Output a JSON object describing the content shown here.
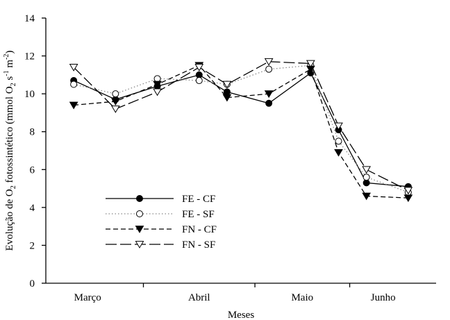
{
  "chart_data": {
    "type": "line",
    "xlabel": "Meses",
    "ylabel": {
      "parts": [
        {
          "t": "Evolução de O"
        },
        {
          "t": "2",
          "s": "sub"
        },
        {
          "t": " fotossintético (mmol O"
        },
        {
          "t": "2",
          "s": "sub"
        },
        {
          "t": " s"
        },
        {
          "t": "-1",
          "s": "sup"
        },
        {
          "t": " m"
        },
        {
          "t": "-2",
          "s": "sup"
        },
        {
          "t": ")"
        }
      ]
    },
    "ylim": [
      0,
      14
    ],
    "yticks": [
      0,
      2,
      4,
      6,
      8,
      10,
      12,
      14
    ],
    "xlim": [
      0,
      14
    ],
    "categories": [
      {
        "label": "Março",
        "x": 1.5
      },
      {
        "label": "Abril",
        "x": 5.5
      },
      {
        "label": "Maio",
        "x": 9.2
      },
      {
        "label": "Junho",
        "x": 12.1
      }
    ],
    "xticks": [
      3.5,
      7.5,
      10.9
    ],
    "grid": false,
    "legend_position": "lower-left",
    "series": [
      {
        "name": "FE - CF",
        "marker": "filled-circle",
        "dash": "solid",
        "points": [
          [
            1,
            10.7
          ],
          [
            2.5,
            9.7
          ],
          [
            4,
            10.4
          ],
          [
            5.5,
            11.0
          ],
          [
            6.5,
            10.1
          ],
          [
            8,
            9.5
          ],
          [
            9.5,
            11.1
          ],
          [
            10.5,
            8.1
          ],
          [
            11.5,
            5.3
          ],
          [
            13,
            5.1
          ]
        ]
      },
      {
        "name": "FE - SF",
        "marker": "open-circle",
        "dash": "dotted",
        "points": [
          [
            1,
            10.5
          ],
          [
            2.5,
            10.0
          ],
          [
            4,
            10.8
          ],
          [
            5.5,
            10.7
          ],
          [
            6.5,
            10.5
          ],
          [
            8,
            11.3
          ],
          [
            9.5,
            11.5
          ],
          [
            10.5,
            7.5
          ],
          [
            11.5,
            5.6
          ],
          [
            13,
            4.8
          ]
        ]
      },
      {
        "name": "FN - CF",
        "marker": "filled-triangle-down",
        "dash": "short-dash",
        "points": [
          [
            1,
            9.4
          ],
          [
            2.5,
            9.6
          ],
          [
            4,
            10.5
          ],
          [
            5.5,
            11.5
          ],
          [
            6.5,
            9.8
          ],
          [
            8,
            10.0
          ],
          [
            9.5,
            11.3
          ],
          [
            10.5,
            6.9
          ],
          [
            11.5,
            4.6
          ],
          [
            13,
            4.5
          ]
        ]
      },
      {
        "name": "FN - SF",
        "marker": "open-triangle-down",
        "dash": "long-dash",
        "points": [
          [
            1,
            11.4
          ],
          [
            2.5,
            9.2
          ],
          [
            4,
            10.1
          ],
          [
            5.5,
            11.4
          ],
          [
            6.5,
            10.5
          ],
          [
            8,
            11.7
          ],
          [
            9.5,
            11.6
          ],
          [
            10.5,
            8.3
          ],
          [
            11.5,
            6.0
          ],
          [
            13,
            4.9
          ]
        ]
      }
    ]
  }
}
